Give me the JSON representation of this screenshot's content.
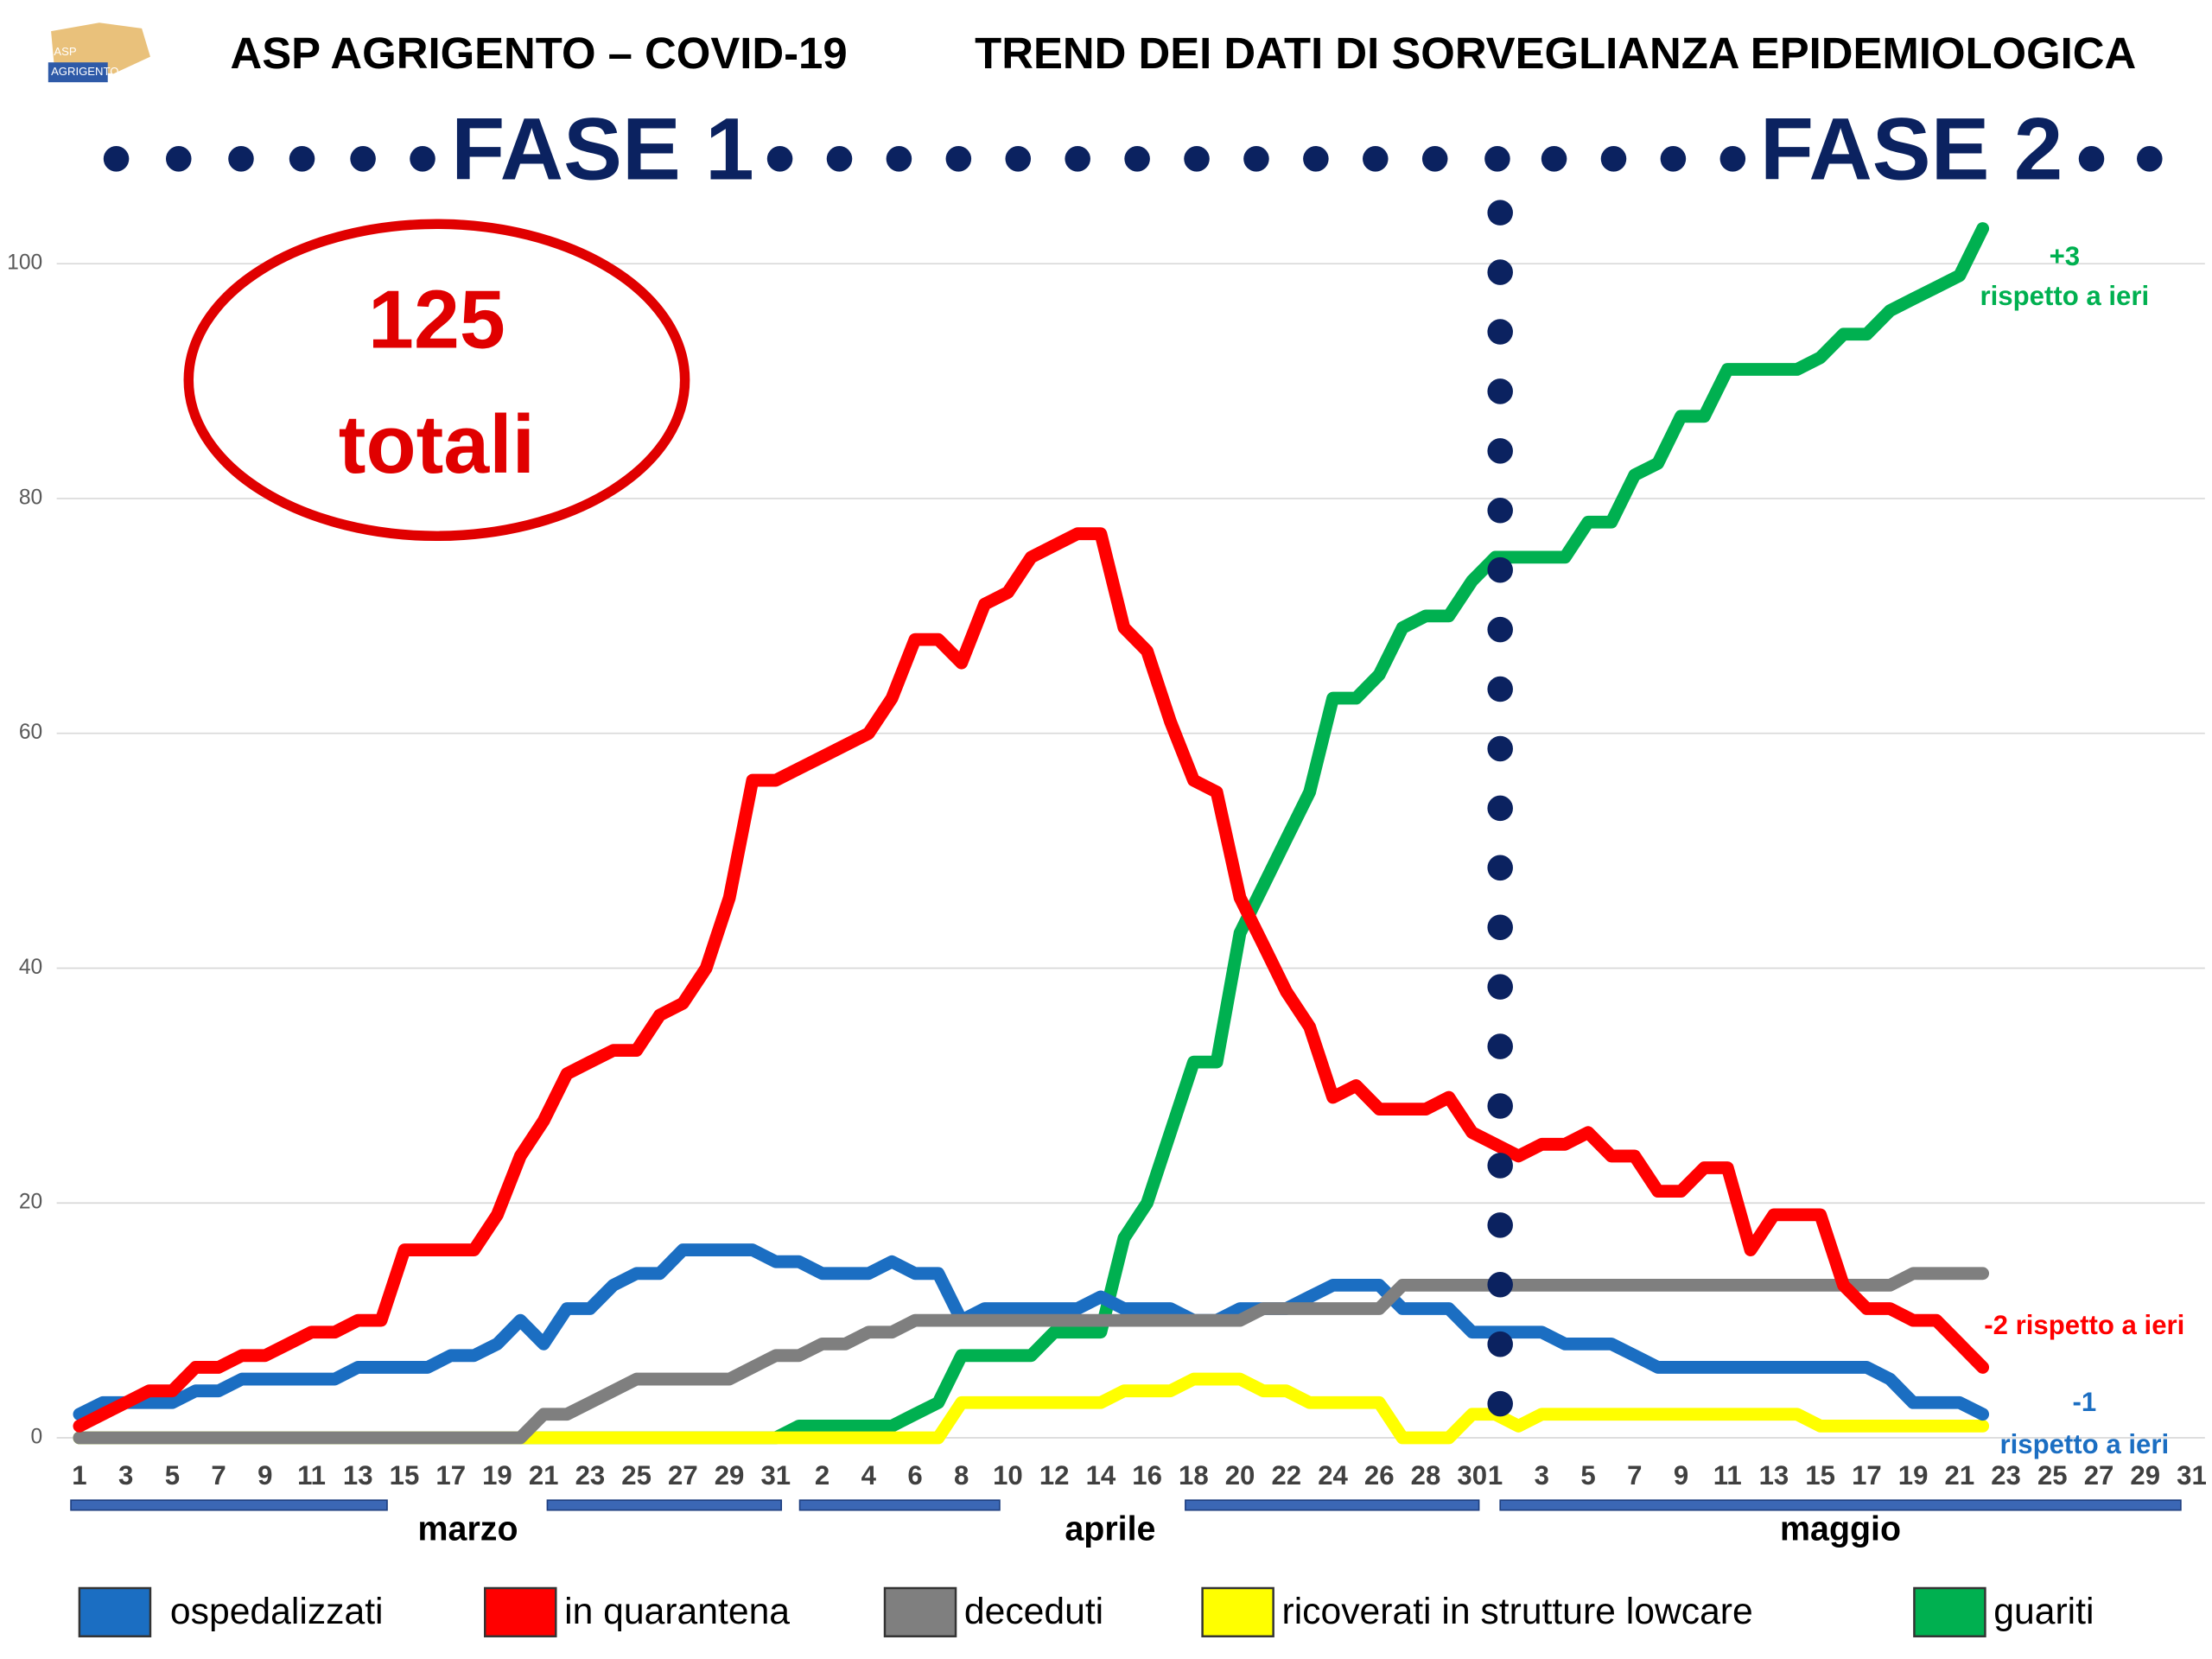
{
  "logo": {
    "line1": "ASP",
    "line2": "AGRIGENTO"
  },
  "header": {
    "left": "ASP AGRIGENTO – COVID-19",
    "right": "TREND DEI DATI DI SORVEGLIANZA EPIDEMIOLOGICA"
  },
  "phases": [
    "FASE 1",
    "FASE 2"
  ],
  "total_badge": {
    "number": "125",
    "label": "totali"
  },
  "chart_data": {
    "type": "line",
    "categories": [
      "1",
      null,
      "3",
      null,
      "5",
      null,
      "7",
      null,
      "9",
      null,
      "11",
      null,
      "13",
      null,
      "15",
      null,
      "17",
      null,
      "19",
      null,
      "21",
      null,
      "23",
      null,
      "25",
      null,
      "27",
      null,
      "29",
      null,
      "31",
      null,
      "2",
      null,
      "4",
      null,
      "6",
      null,
      "8",
      null,
      "10",
      null,
      "12",
      null,
      "14",
      null,
      "16",
      null,
      "18",
      null,
      "20",
      null,
      "22",
      null,
      "24",
      null,
      "26",
      null,
      "28",
      null,
      "30",
      "1",
      null,
      "3",
      null,
      "5",
      null,
      "7",
      null,
      "9",
      null,
      "11",
      null,
      "13",
      null,
      "15",
      null,
      "17",
      null,
      "19",
      null,
      "21",
      null,
      "23",
      null,
      "25",
      null,
      "27",
      null,
      "29",
      null,
      "31"
    ],
    "months": [
      "marzo",
      "aprile",
      "maggio"
    ],
    "ylim": [
      0,
      100
    ],
    "yticks": [
      0,
      20,
      40,
      60,
      80,
      100
    ],
    "grid": true,
    "series": [
      {
        "name": "ospedalizzati",
        "color": "#1b6ec2",
        "values": [
          2,
          3,
          3,
          3,
          3,
          4,
          4,
          5,
          5,
          5,
          5,
          5,
          6,
          6,
          6,
          6,
          7,
          7,
          8,
          10,
          8,
          11,
          11,
          13,
          14,
          14,
          16,
          16,
          16,
          16,
          15,
          15,
          14,
          14,
          14,
          15,
          14,
          14,
          10,
          11,
          11,
          11,
          11,
          11,
          12,
          11,
          11,
          11,
          10,
          10,
          11,
          11,
          11,
          12,
          13,
          13,
          13,
          11,
          11,
          11,
          9,
          9,
          9,
          9,
          8,
          8,
          8,
          7,
          6,
          6,
          6,
          6,
          6,
          6,
          6,
          6,
          6,
          6,
          5,
          3,
          3,
          3,
          2,
          null,
          null,
          null,
          null,
          null,
          null,
          null,
          null,
          null
        ]
      },
      {
        "name": "in quarantena",
        "color": "#ff0000",
        "values": [
          1,
          2,
          3,
          4,
          4,
          6,
          6,
          7,
          7,
          8,
          9,
          9,
          10,
          10,
          16,
          16,
          16,
          16,
          19,
          24,
          27,
          31,
          32,
          33,
          33,
          36,
          37,
          40,
          46,
          56,
          56,
          57,
          58,
          59,
          60,
          63,
          68,
          68,
          66,
          71,
          72,
          75,
          76,
          77,
          77,
          69,
          67,
          61,
          56,
          55,
          46,
          42,
          38,
          35,
          29,
          30,
          28,
          28,
          28,
          29,
          26,
          25,
          24,
          25,
          25,
          26,
          24,
          24,
          21,
          21,
          23,
          23,
          16,
          19,
          19,
          19,
          13,
          11,
          11,
          10,
          10,
          8,
          6,
          null,
          null,
          null,
          null,
          null,
          null,
          null,
          null,
          null
        ]
      },
      {
        "name": "deceduti",
        "color": "#7f7f7f",
        "values": [
          0,
          0,
          0,
          0,
          0,
          0,
          0,
          0,
          0,
          0,
          0,
          0,
          0,
          0,
          0,
          0,
          0,
          0,
          0,
          0,
          2,
          2,
          3,
          4,
          5,
          5,
          5,
          5,
          5,
          6,
          7,
          7,
          8,
          8,
          9,
          9,
          10,
          10,
          10,
          10,
          10,
          10,
          10,
          10,
          10,
          10,
          10,
          10,
          10,
          10,
          10,
          11,
          11,
          11,
          11,
          11,
          11,
          13,
          13,
          13,
          13,
          13,
          13,
          13,
          13,
          13,
          13,
          13,
          13,
          13,
          13,
          13,
          13,
          13,
          13,
          13,
          13,
          13,
          13,
          14,
          14,
          14,
          14,
          null,
          null,
          null,
          null,
          null,
          null,
          null,
          null,
          null
        ]
      },
      {
        "name": "ricoverati in strutture lowcare",
        "color": "#ffff00",
        "values": [
          0,
          0,
          0,
          0,
          0,
          0,
          0,
          0,
          0,
          0,
          0,
          0,
          0,
          0,
          0,
          0,
          0,
          0,
          0,
          0,
          0,
          0,
          0,
          0,
          0,
          0,
          0,
          0,
          0,
          0,
          0,
          0,
          0,
          0,
          0,
          0,
          0,
          0,
          3,
          3,
          3,
          3,
          3,
          3,
          3,
          4,
          4,
          4,
          5,
          5,
          5,
          4,
          4,
          3,
          3,
          3,
          3,
          0,
          0,
          0,
          2,
          2,
          1,
          2,
          2,
          2,
          2,
          2,
          2,
          2,
          2,
          2,
          2,
          2,
          2,
          1,
          1,
          1,
          1,
          1,
          1,
          1,
          1,
          null,
          null,
          null,
          null,
          null,
          null,
          null,
          null,
          null
        ]
      },
      {
        "name": "guariti",
        "color": "#00b050",
        "values": [
          0,
          0,
          0,
          0,
          0,
          0,
          0,
          0,
          0,
          0,
          0,
          0,
          0,
          0,
          0,
          0,
          0,
          0,
          0,
          0,
          0,
          0,
          0,
          0,
          0,
          0,
          0,
          0,
          0,
          0,
          0,
          1,
          1,
          1,
          1,
          1,
          2,
          3,
          7,
          7,
          7,
          7,
          9,
          9,
          9,
          17,
          20,
          26,
          32,
          32,
          43,
          47,
          51,
          55,
          63,
          63,
          65,
          69,
          70,
          70,
          73,
          75,
          75,
          75,
          75,
          78,
          78,
          82,
          83,
          87,
          87,
          91,
          91,
          91,
          91,
          92,
          94,
          94,
          96,
          97,
          98,
          99,
          103,
          null,
          null,
          null,
          null,
          null,
          null,
          null,
          null,
          null
        ]
      }
    ],
    "annotations": [
      {
        "line1": "+3",
        "line2": "rispetto a ieri"
      },
      {
        "line1": "-2 rispetto a ieri"
      },
      {
        "line1": "-1",
        "line2": "rispetto a ieri"
      }
    ]
  }
}
